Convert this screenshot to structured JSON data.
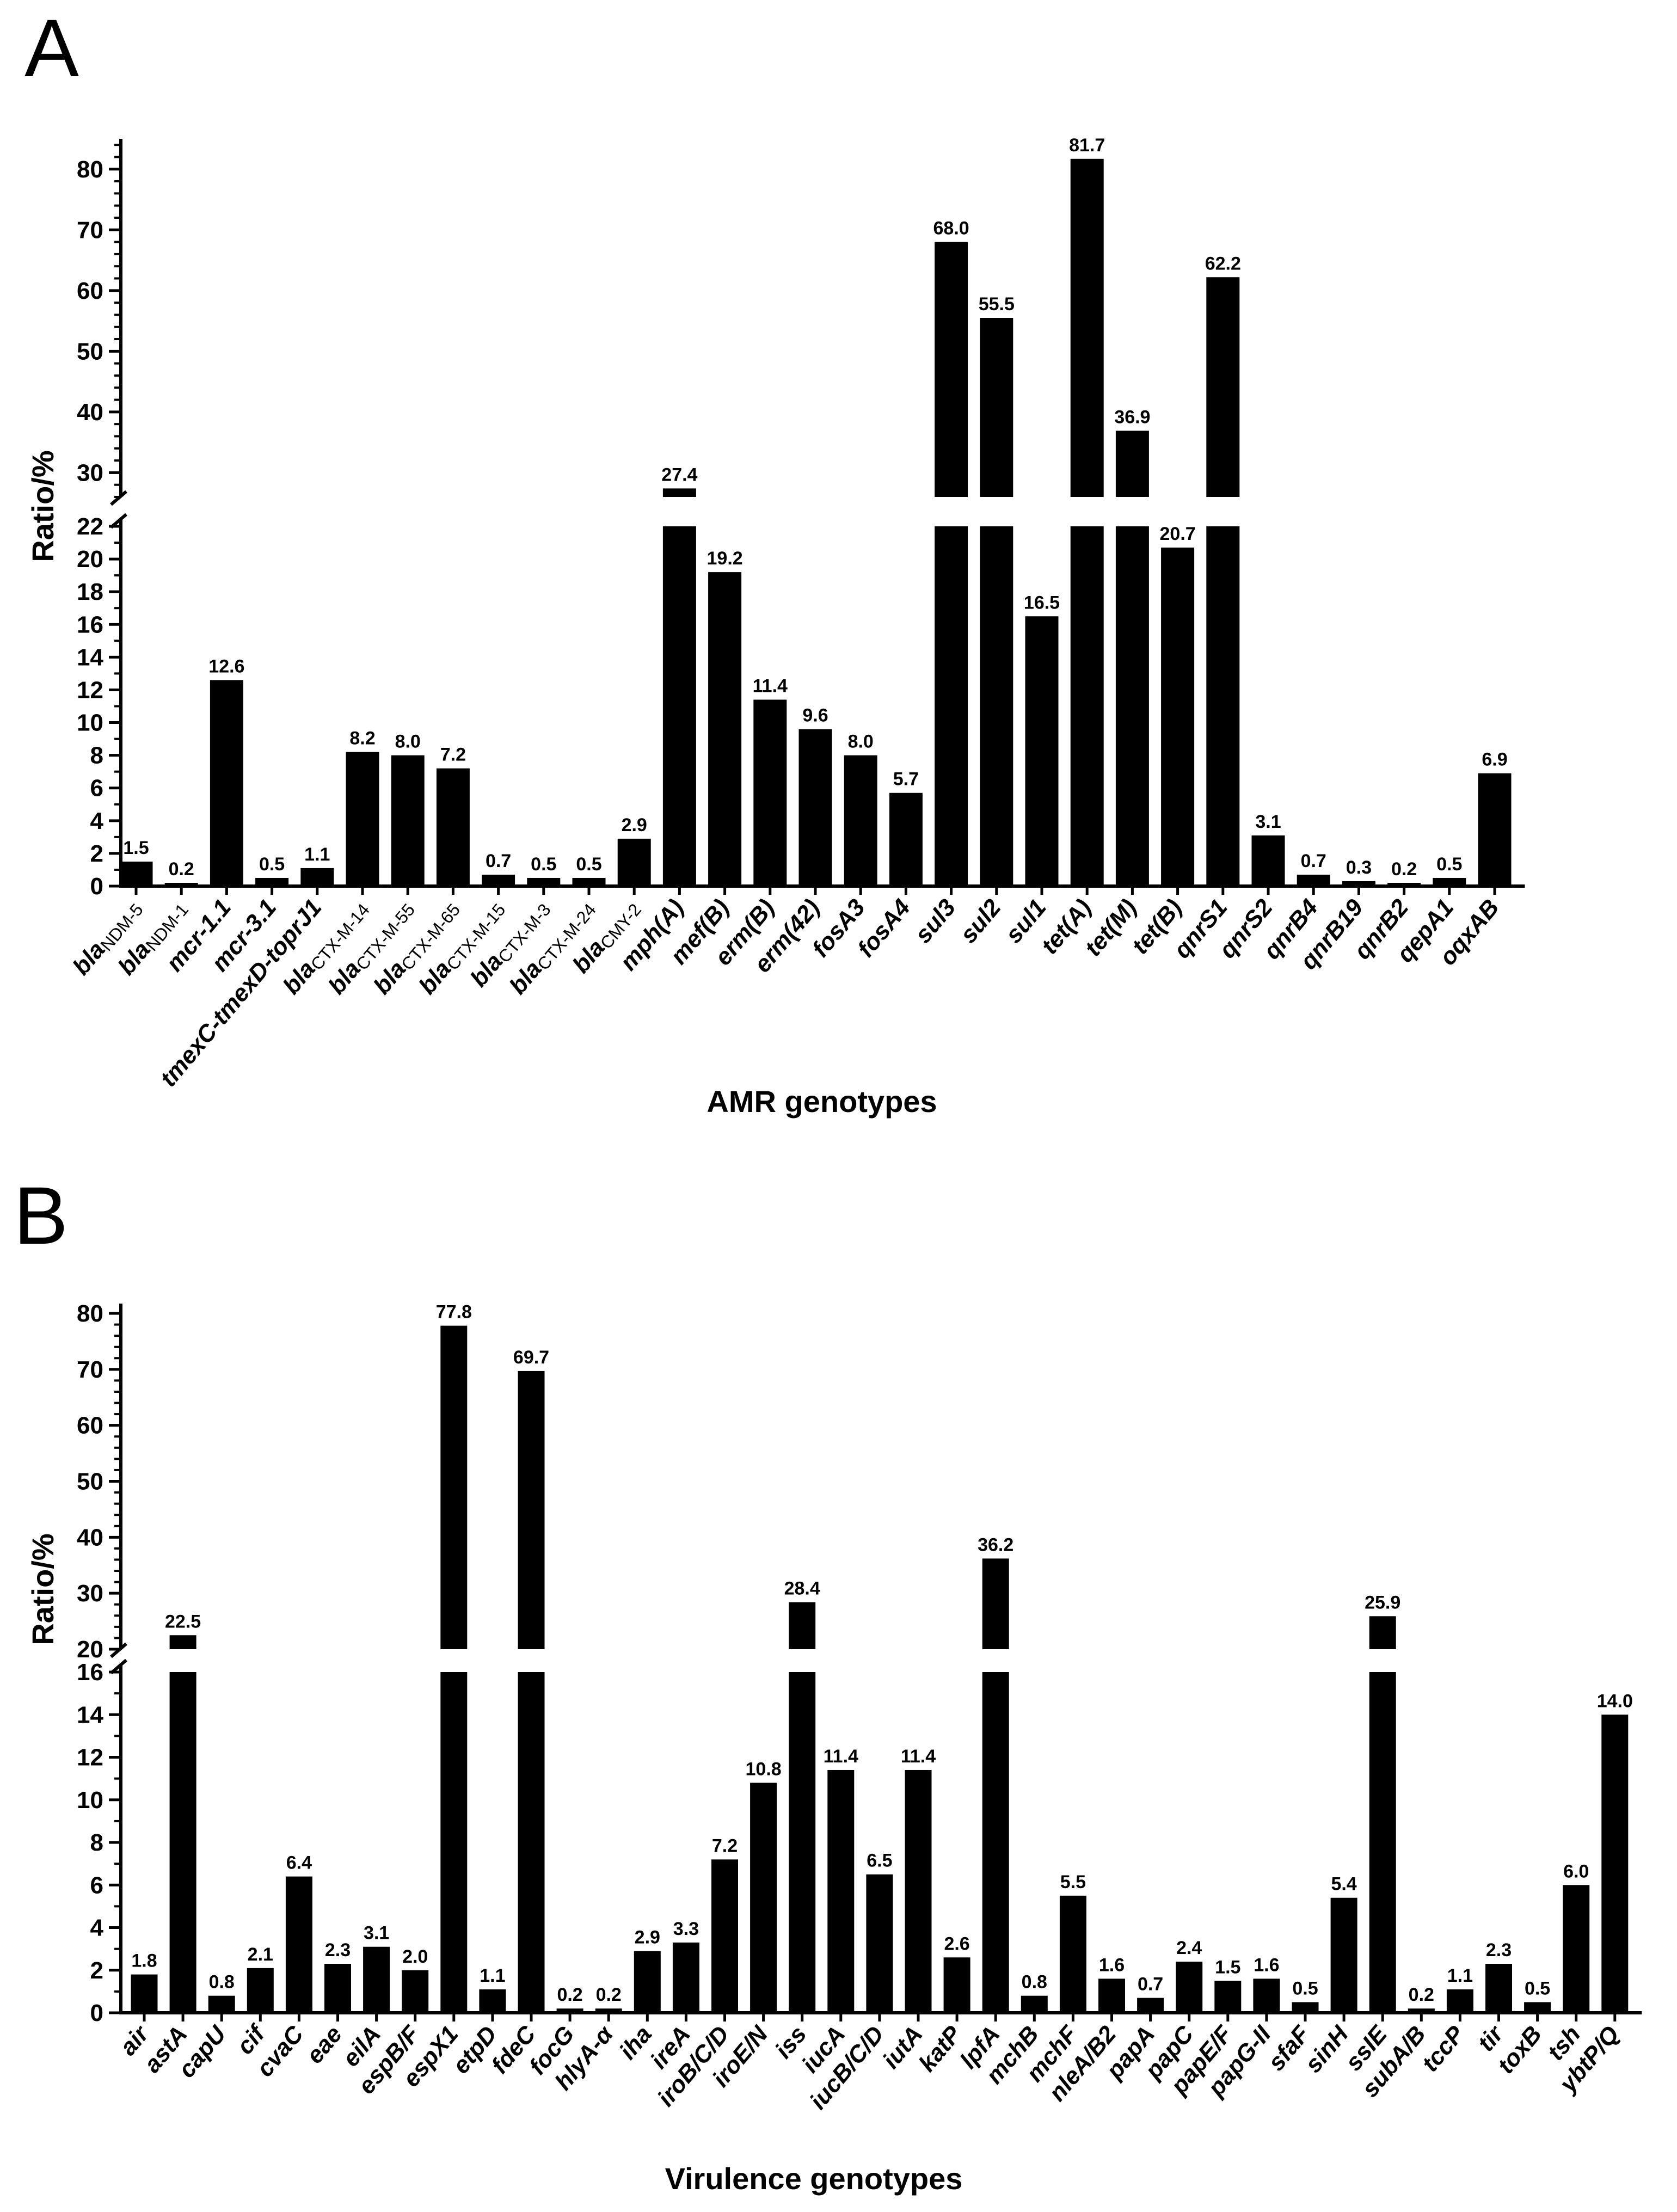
{
  "chart_data": [
    {
      "panel": "A",
      "type": "bar",
      "ylabel": "Ratio/%",
      "xlabel": "AMR genotypes",
      "ylim": [
        0,
        85
      ],
      "axis_break": [
        22,
        26
      ],
      "lower_ticks": [
        0,
        2,
        4,
        6,
        8,
        10,
        12,
        14,
        16,
        18,
        20,
        22
      ],
      "upper_ticks": [
        30,
        40,
        50,
        60,
        70,
        80
      ],
      "categories": [
        "blaNDM-5",
        "blaNDM-1",
        "mcr-1.1",
        "mcr-3.1",
        "tmexC-tmexD-toprJ1",
        "blaCTX-M-14",
        "blaCTX-M-55",
        "blaCTX-M-65",
        "blaCTX-M-15",
        "blaCTX-M-3",
        "blaCTX-M-24",
        "blaCMY-2",
        "mph(A)",
        "mef(B)",
        "erm(B)",
        "erm(42)",
        "fosA3",
        "fosA4",
        "sul3",
        "sul2",
        "sul1",
        "tet(A)",
        "tet(M)",
        "tet(B)",
        "qnrS1",
        "qnrS2",
        "qnrB4",
        "qnrB19",
        "qnrB2",
        "qepA1",
        "oqxAB"
      ],
      "values": [
        1.5,
        0.2,
        12.6,
        0.5,
        1.1,
        8.2,
        8.0,
        7.2,
        0.7,
        0.5,
        0.5,
        2.9,
        27.4,
        19.2,
        11.4,
        9.6,
        8.0,
        5.7,
        68.0,
        55.5,
        16.5,
        81.7,
        36.9,
        20.7,
        62.2,
        3.1,
        0.7,
        0.3,
        0.2,
        0.5,
        6.9
      ],
      "value_labels": [
        "1.5",
        "0.2",
        "12.6",
        "0.5",
        "1.1",
        "8.2",
        "8.0",
        "7.2",
        "0.7",
        "0.5",
        "0.5",
        "2.9",
        "27.4",
        "19.2",
        "11.4",
        "9.6",
        "8.0",
        "5.7",
        "68.0",
        "55.5",
        "16.5",
        "81.7",
        "36.9",
        "20.7",
        "62.2",
        "3.1",
        "0.7",
        "0.3",
        "0.2",
        "0.5",
        "6.9"
      ],
      "bar_color": "#000000"
    },
    {
      "panel": "B",
      "type": "bar",
      "ylabel": "Ratio/%",
      "xlabel": "Virulence genotypes",
      "ylim": [
        0,
        80
      ],
      "axis_break": [
        16,
        20
      ],
      "lower_ticks": [
        0,
        2,
        4,
        6,
        8,
        10,
        12,
        14,
        16
      ],
      "upper_ticks": [
        20,
        30,
        40,
        50,
        60,
        70,
        80
      ],
      "categories": [
        "air",
        "astA",
        "capU",
        "cif",
        "cvaC",
        "eae",
        "eilA",
        "espB/F",
        "espX1",
        "etpD",
        "fdeC",
        "focG",
        "hlyA-α",
        "iha",
        "ireA",
        "iroB/C/D",
        "iroE/N",
        "iss",
        "iucA",
        "iucB/C/D",
        "iutA",
        "katP",
        "lpfA",
        "mchB",
        "mchF",
        "nleA/B2",
        "papA",
        "papC",
        "papE/F",
        "papG-II",
        "sfaF",
        "sinH",
        "ssIE",
        "subA/B",
        "tccP",
        "tir",
        "toxB",
        "tsh",
        "ybtP/Q"
      ],
      "values": [
        1.8,
        22.5,
        0.8,
        2.1,
        6.4,
        2.3,
        3.1,
        2.0,
        77.8,
        1.1,
        69.7,
        0.2,
        0.2,
        2.9,
        3.3,
        7.2,
        10.8,
        28.4,
        11.4,
        6.5,
        11.4,
        2.6,
        36.2,
        0.8,
        5.5,
        1.6,
        0.7,
        2.4,
        1.5,
        1.6,
        0.5,
        5.4,
        25.9,
        0.2,
        1.1,
        2.3,
        0.5,
        6.0,
        14.0
      ],
      "value_labels": [
        "1.8",
        "22.5",
        "0.8",
        "2.1",
        "6.4",
        "2.3",
        "3.1",
        "2.0",
        "77.8",
        "1.1",
        "69.7",
        "0.2",
        "0.2",
        "2.9",
        "3.3",
        "7.2",
        "10.8",
        "28.4",
        "11.4",
        "6.5",
        "11.4",
        "2.6",
        "36.2",
        "0.8",
        "5.5",
        "1.6",
        "0.7",
        "2.4",
        "1.5",
        "1.6",
        "0.5",
        "5.4",
        "25.9",
        "0.2",
        "1.1",
        "2.3",
        "0.5",
        "6.0",
        "14.0"
      ],
      "bar_color": "#000000"
    }
  ]
}
